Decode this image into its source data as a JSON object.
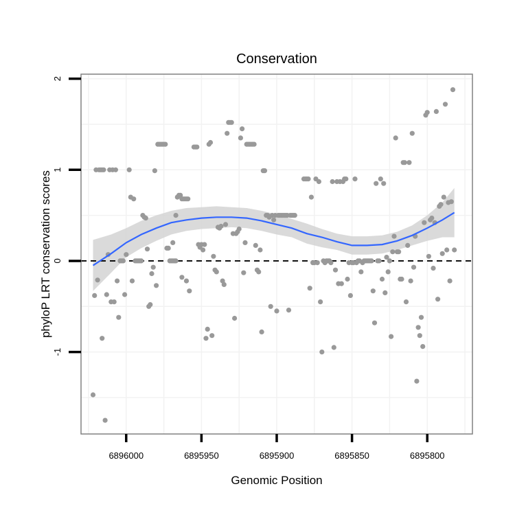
{
  "chart_data": {
    "type": "scatter",
    "title": "Conservation",
    "xlabel": "Genomic Position",
    "ylabel": "phyloP LRT conservation scores",
    "x_reversed": true,
    "xlim": [
      6896030,
      6895770
    ],
    "ylim": [
      -1.9,
      2.05
    ],
    "x_ticks": [
      6896000,
      6895950,
      6895900,
      6895850,
      6895800
    ],
    "x_tick_labels": [
      "6896000",
      "6895950",
      "6895900",
      "6895850",
      "6895800"
    ],
    "y_ticks": [
      -1,
      0,
      1,
      2
    ],
    "y_tick_labels": [
      "-1",
      "0",
      "1",
      "2"
    ],
    "reference_line": {
      "y": 0,
      "style": "dashed"
    },
    "points": [
      [
        6896022,
        -1.47
      ],
      [
        6896021,
        -0.38
      ],
      [
        6896019,
        -0.21
      ],
      [
        6896020,
        1.0
      ],
      [
        6896018,
        1.0
      ],
      [
        6896017,
        1.0
      ],
      [
        6896016,
        1.0
      ],
      [
        6896015,
        1.0
      ],
      [
        6896016,
        -0.85
      ],
      [
        6896014,
        -1.75
      ],
      [
        6896013,
        -0.37
      ],
      [
        6896012,
        0.07
      ],
      [
        6896011,
        1.0
      ],
      [
        6896010,
        -0.45
      ],
      [
        6896009,
        1.0
      ],
      [
        6896008,
        -0.45
      ],
      [
        6896007,
        1.0
      ],
      [
        6896006,
        -0.22
      ],
      [
        6896005,
        -0.62
      ],
      [
        6896004,
        0.0
      ],
      [
        6896003,
        0.0
      ],
      [
        6896002,
        0.0
      ],
      [
        6896001,
        -0.37
      ],
      [
        6896000,
        0.07
      ],
      [
        6895998,
        1.0
      ],
      [
        6895997,
        0.7
      ],
      [
        6895996,
        -0.22
      ],
      [
        6895995,
        0.68
      ],
      [
        6895994,
        0.0
      ],
      [
        6895993,
        0.0
      ],
      [
        6895992,
        0.0
      ],
      [
        6895991,
        0.0
      ],
      [
        6895990,
        0.0
      ],
      [
        6895989,
        0.5
      ],
      [
        6895988,
        0.48
      ],
      [
        6895987,
        0.47
      ],
      [
        6895986,
        0.13
      ],
      [
        6895985,
        -0.5
      ],
      [
        6895984,
        -0.48
      ],
      [
        6895983,
        -0.14
      ],
      [
        6895982,
        -0.07
      ],
      [
        6895981,
        0.99
      ],
      [
        6895980,
        -0.27
      ],
      [
        6895979,
        1.28
      ],
      [
        6895978,
        1.28
      ],
      [
        6895977,
        1.28
      ],
      [
        6895976,
        1.28
      ],
      [
        6895975,
        1.28
      ],
      [
        6895974,
        1.28
      ],
      [
        6895973,
        0.14
      ],
      [
        6895972,
        0.14
      ],
      [
        6895971,
        0.0
      ],
      [
        6895970,
        0.0
      ],
      [
        6895969,
        0.0
      ],
      [
        6895968,
        0.0
      ],
      [
        6895967,
        0.0
      ],
      [
        6895966,
        0.7
      ],
      [
        6895965,
        0.72
      ],
      [
        6895964,
        0.72
      ],
      [
        6895963,
        0.68
      ],
      [
        6895962,
        0.68
      ],
      [
        6895961,
        0.68
      ],
      [
        6895960,
        0.68
      ],
      [
        6895959,
        0.68
      ],
      [
        6895969,
        0.2
      ],
      [
        6895967,
        0.5
      ],
      [
        6895963,
        -0.18
      ],
      [
        6895960,
        -0.22
      ],
      [
        6895958,
        -0.33
      ],
      [
        6895955,
        1.25
      ],
      [
        6895954,
        1.25
      ],
      [
        6895953,
        1.25
      ],
      [
        6895952,
        0.18
      ],
      [
        6895951,
        0.15
      ],
      [
        6895950,
        0.18
      ],
      [
        6895949,
        0.12
      ],
      [
        6895948,
        0.18
      ],
      [
        6895947,
        -0.85
      ],
      [
        6895946,
        -0.75
      ],
      [
        6895945,
        1.28
      ],
      [
        6895944,
        1.3
      ],
      [
        6895943,
        -0.82
      ],
      [
        6895942,
        0.05
      ],
      [
        6895941,
        -0.1
      ],
      [
        6895940,
        -0.12
      ],
      [
        6895939,
        0.37
      ],
      [
        6895938,
        0.36
      ],
      [
        6895937,
        0.38
      ],
      [
        6895936,
        -0.22
      ],
      [
        6895935,
        -0.26
      ],
      [
        6895934,
        0.4
      ],
      [
        6895933,
        1.4
      ],
      [
        6895932,
        1.52
      ],
      [
        6895931,
        1.52
      ],
      [
        6895930,
        1.52
      ],
      [
        6895929,
        0.3
      ],
      [
        6895928,
        -0.63
      ],
      [
        6895927,
        0.3
      ],
      [
        6895926,
        0.32
      ],
      [
        6895925,
        0.35
      ],
      [
        6895924,
        1.35
      ],
      [
        6895923,
        1.45
      ],
      [
        6895922,
        -0.13
      ],
      [
        6895921,
        0.2
      ],
      [
        6895920,
        1.28
      ],
      [
        6895919,
        1.28
      ],
      [
        6895918,
        1.28
      ],
      [
        6895917,
        1.28
      ],
      [
        6895916,
        1.28
      ],
      [
        6895915,
        1.28
      ],
      [
        6895914,
        0.17
      ],
      [
        6895913,
        -0.1
      ],
      [
        6895912,
        -0.12
      ],
      [
        6895911,
        0.12
      ],
      [
        6895910,
        -0.78
      ],
      [
        6895909,
        0.99
      ],
      [
        6895908,
        0.99
      ],
      [
        6895907,
        0.5
      ],
      [
        6895906,
        0.5
      ],
      [
        6895905,
        0.48
      ],
      [
        6895904,
        -0.5
      ],
      [
        6895903,
        0.5
      ],
      [
        6895902,
        0.45
      ],
      [
        6895901,
        0.5
      ],
      [
        6895900,
        -0.55
      ],
      [
        6895899,
        0.5
      ],
      [
        6895898,
        0.5
      ],
      [
        6895897,
        0.5
      ],
      [
        6895896,
        0.5
      ],
      [
        6895895,
        0.5
      ],
      [
        6895894,
        0.5
      ],
      [
        6895893,
        0.5
      ],
      [
        6895892,
        -0.54
      ],
      [
        6895891,
        0.5
      ],
      [
        6895890,
        0.5
      ],
      [
        6895889,
        0.5
      ],
      [
        6895888,
        0.5
      ],
      [
        6895882,
        0.9
      ],
      [
        6895881,
        0.9
      ],
      [
        6895880,
        0.9
      ],
      [
        6895879,
        0.9
      ],
      [
        6895878,
        -0.3
      ],
      [
        6895877,
        0.7
      ],
      [
        6895876,
        -0.02
      ],
      [
        6895875,
        -0.02
      ],
      [
        6895874,
        0.9
      ],
      [
        6895873,
        -0.02
      ],
      [
        6895872,
        0.87
      ],
      [
        6895871,
        -0.45
      ],
      [
        6895870,
        -1.0
      ],
      [
        6895869,
        0.0
      ],
      [
        6895868,
        -0.02
      ],
      [
        6895867,
        0.0
      ],
      [
        6895866,
        0.0
      ],
      [
        6895865,
        0.0
      ],
      [
        6895864,
        -0.02
      ],
      [
        6895863,
        0.87
      ],
      [
        6895862,
        -0.95
      ],
      [
        6895861,
        -0.1
      ],
      [
        6895860,
        0.87
      ],
      [
        6895859,
        -0.25
      ],
      [
        6895858,
        0.87
      ],
      [
        6895857,
        -0.25
      ],
      [
        6895856,
        0.87
      ],
      [
        6895855,
        0.9
      ],
      [
        6895854,
        0.9
      ],
      [
        6895853,
        -0.2
      ],
      [
        6895852,
        -0.02
      ],
      [
        6895851,
        -0.38
      ],
      [
        6895850,
        -0.02
      ],
      [
        6895849,
        -0.02
      ],
      [
        6895848,
        0.9
      ],
      [
        6895847,
        -0.02
      ],
      [
        6895846,
        0.0
      ],
      [
        6895845,
        0.0
      ],
      [
        6895844,
        -0.12
      ],
      [
        6895843,
        -0.02
      ],
      [
        6895842,
        0.0
      ],
      [
        6895841,
        0.0
      ],
      [
        6895840,
        0.0
      ],
      [
        6895839,
        0.0
      ],
      [
        6895838,
        0.0
      ],
      [
        6895837,
        0.0
      ],
      [
        6895836,
        -0.33
      ],
      [
        6895835,
        -0.68
      ],
      [
        6895834,
        0.85
      ],
      [
        6895833,
        0.0
      ],
      [
        6895832,
        0.0
      ],
      [
        6895831,
        0.9
      ],
      [
        6895830,
        -0.2
      ],
      [
        6895829,
        0.85
      ],
      [
        6895828,
        -0.35
      ],
      [
        6895827,
        0.04
      ],
      [
        6895826,
        -0.12
      ],
      [
        6895825,
        0.0
      ],
      [
        6895824,
        -0.83
      ],
      [
        6895823,
        0.1
      ],
      [
        6895822,
        0.27
      ],
      [
        6895821,
        1.35
      ],
      [
        6895820,
        0.1
      ],
      [
        6895819,
        0.1
      ],
      [
        6895818,
        -0.2
      ],
      [
        6895817,
        -0.2
      ],
      [
        6895816,
        1.08
      ],
      [
        6895815,
        1.08
      ],
      [
        6895814,
        -0.45
      ],
      [
        6895813,
        0.17
      ],
      [
        6895812,
        1.08
      ],
      [
        6895811,
        -0.22
      ],
      [
        6895810,
        1.4
      ],
      [
        6895809,
        -0.07
      ],
      [
        6895808,
        0.27
      ],
      [
        6895807,
        -1.32
      ],
      [
        6895806,
        -0.73
      ],
      [
        6895805,
        -0.82
      ],
      [
        6895804,
        -0.62
      ],
      [
        6895803,
        -0.94
      ],
      [
        6895802,
        0.42
      ],
      [
        6895801,
        1.6
      ],
      [
        6895800,
        1.63
      ],
      [
        6895799,
        0.05
      ],
      [
        6895798,
        0.45
      ],
      [
        6895797,
        0.47
      ],
      [
        6895796,
        -0.08
      ],
      [
        6895795,
        0.42
      ],
      [
        6895794,
        1.64
      ],
      [
        6895793,
        -0.42
      ],
      [
        6895792,
        0.6
      ],
      [
        6895791,
        0.62
      ],
      [
        6895790,
        0.08
      ],
      [
        6895789,
        0.7
      ],
      [
        6895788,
        1.72
      ],
      [
        6895787,
        0.12
      ],
      [
        6895786,
        0.64
      ],
      [
        6895785,
        -0.22
      ],
      [
        6895784,
        0.65
      ],
      [
        6895783,
        1.88
      ],
      [
        6895782,
        0.12
      ]
    ],
    "smooth": [
      [
        6896022,
        -0.05
      ],
      [
        6896010,
        0.08
      ],
      [
        6896000,
        0.2
      ],
      [
        6895990,
        0.29
      ],
      [
        6895980,
        0.36
      ],
      [
        6895970,
        0.42
      ],
      [
        6895960,
        0.45
      ],
      [
        6895950,
        0.47
      ],
      [
        6895940,
        0.48
      ],
      [
        6895930,
        0.48
      ],
      [
        6895920,
        0.47
      ],
      [
        6895910,
        0.44
      ],
      [
        6895900,
        0.4
      ],
      [
        6895890,
        0.36
      ],
      [
        6895880,
        0.3
      ],
      [
        6895870,
        0.26
      ],
      [
        6895860,
        0.21
      ],
      [
        6895850,
        0.17
      ],
      [
        6895840,
        0.17
      ],
      [
        6895830,
        0.18
      ],
      [
        6895820,
        0.22
      ],
      [
        6895810,
        0.28
      ],
      [
        6895800,
        0.36
      ],
      [
        6895790,
        0.45
      ],
      [
        6895782,
        0.53
      ]
    ],
    "ci_upper": [
      [
        6896022,
        0.23
      ],
      [
        6896010,
        0.29
      ],
      [
        6896000,
        0.36
      ],
      [
        6895990,
        0.44
      ],
      [
        6895980,
        0.5
      ],
      [
        6895970,
        0.55
      ],
      [
        6895960,
        0.58
      ],
      [
        6895950,
        0.59
      ],
      [
        6895940,
        0.6
      ],
      [
        6895930,
        0.59
      ],
      [
        6895920,
        0.58
      ],
      [
        6895910,
        0.55
      ],
      [
        6895900,
        0.51
      ],
      [
        6895890,
        0.46
      ],
      [
        6895880,
        0.41
      ],
      [
        6895870,
        0.35
      ],
      [
        6895860,
        0.3
      ],
      [
        6895850,
        0.27
      ],
      [
        6895840,
        0.27
      ],
      [
        6895830,
        0.28
      ],
      [
        6895820,
        0.32
      ],
      [
        6895810,
        0.39
      ],
      [
        6895800,
        0.5
      ],
      [
        6895790,
        0.64
      ],
      [
        6895782,
        0.8
      ]
    ],
    "ci_lower": [
      [
        6896022,
        -0.33
      ],
      [
        6896010,
        -0.13
      ],
      [
        6896000,
        0.04
      ],
      [
        6895990,
        0.14
      ],
      [
        6895980,
        0.22
      ],
      [
        6895970,
        0.29
      ],
      [
        6895960,
        0.33
      ],
      [
        6895950,
        0.35
      ],
      [
        6895940,
        0.36
      ],
      [
        6895930,
        0.37
      ],
      [
        6895920,
        0.36
      ],
      [
        6895910,
        0.33
      ],
      [
        6895900,
        0.29
      ],
      [
        6895890,
        0.26
      ],
      [
        6895880,
        0.19
      ],
      [
        6895870,
        0.15
      ],
      [
        6895860,
        0.12
      ],
      [
        6895850,
        0.07
      ],
      [
        6895840,
        0.07
      ],
      [
        6895830,
        0.08
      ],
      [
        6895820,
        0.12
      ],
      [
        6895810,
        0.17
      ],
      [
        6895800,
        0.22
      ],
      [
        6895790,
        0.26
      ],
      [
        6895782,
        0.26
      ]
    ],
    "colors": {
      "points": "#999999",
      "smooth_line": "#3366FF",
      "ci_band": "#d4d4d4",
      "grid": "#f2f2f2",
      "panel_border": "#808080",
      "reference_line": "#000000"
    }
  }
}
